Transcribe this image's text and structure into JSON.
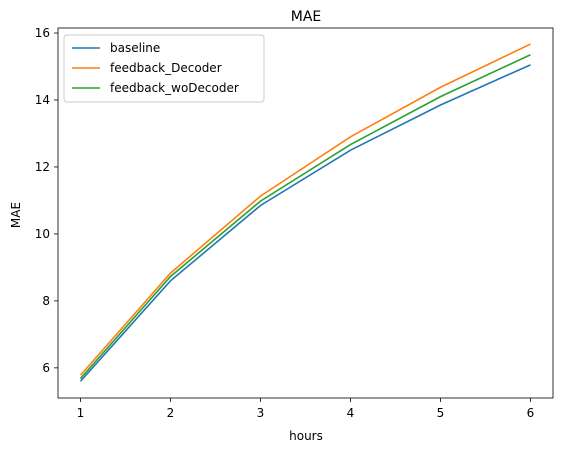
{
  "chart_data": {
    "type": "line",
    "title": "MAE",
    "xlabel": "hours",
    "ylabel": "MAE",
    "x": [
      1,
      2,
      3,
      4,
      5,
      6
    ],
    "xticks": [
      1,
      2,
      3,
      4,
      5,
      6
    ],
    "yticks": [
      6,
      8,
      10,
      12,
      14,
      16
    ],
    "xlim": [
      0.75,
      6.25
    ],
    "ylim": [
      5.1,
      16.15
    ],
    "grid": false,
    "legend_position": "upper left",
    "series": [
      {
        "name": "baseline",
        "color": "#1f77b4",
        "values": [
          5.6,
          8.6,
          10.85,
          12.5,
          13.85,
          15.05
        ]
      },
      {
        "name": "feedback_Decoder",
        "color": "#ff7f0e",
        "values": [
          5.78,
          8.83,
          11.13,
          12.9,
          14.38,
          15.67
        ]
      },
      {
        "name": "feedback_woDecoder",
        "color": "#2ca02c",
        "values": [
          5.68,
          8.73,
          10.98,
          12.67,
          14.1,
          15.35
        ]
      }
    ]
  }
}
